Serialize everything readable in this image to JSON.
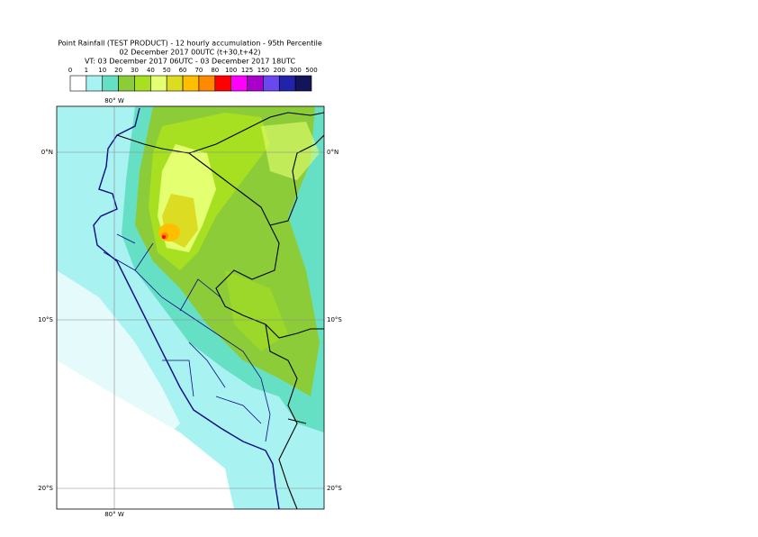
{
  "header": {
    "lines": [
      "Point Rainfall (TEST PRODUCT) - 12 hourly accumulation - 95th Percentile",
      "02 December 2017 00UTC (t+30,t+42)",
      "VT: 03 December 2017 06UTC - 03 December 2017 18UTC"
    ]
  },
  "legend": {
    "bounds": [
      "0",
      "1",
      "10",
      "20",
      "30",
      "40",
      "50",
      "60",
      "70",
      "80",
      "100",
      "125",
      "150",
      "200",
      "300",
      "500"
    ],
    "colors": [
      "#ffffff",
      "#a8f2f2",
      "#66e0c4",
      "#8ccc38",
      "#a6e020",
      "#e4ff70",
      "#dcdc22",
      "#ffbf00",
      "#ff8a00",
      "#ff0000",
      "#ff00ff",
      "#aa00cc",
      "#6a48f0",
      "#2222aa",
      "#14145a"
    ]
  },
  "map": {
    "lon_labels": [
      "80° W",
      "80° W"
    ],
    "lat_labels_left": [
      "0°N",
      "10°S",
      "20°S"
    ],
    "lat_labels_right": [
      "0°N",
      "10°S",
      "20°S"
    ]
  }
}
